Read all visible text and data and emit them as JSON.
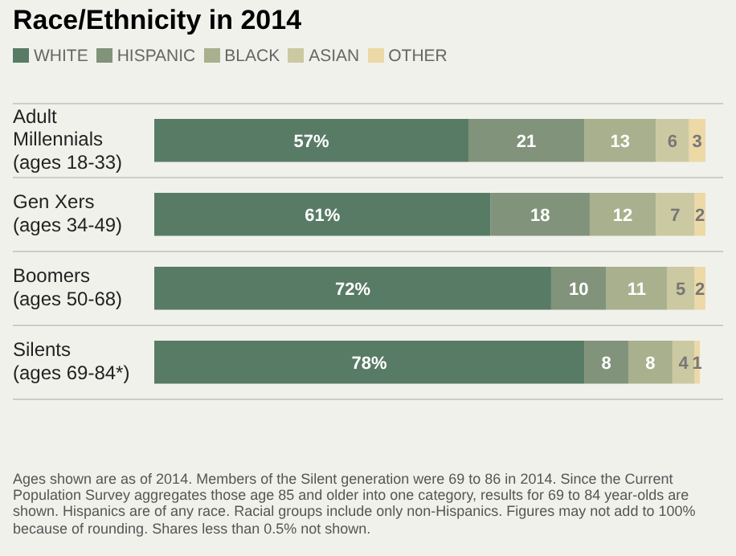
{
  "chart_data": {
    "type": "bar",
    "orientation": "horizontal",
    "stacked": true,
    "title": "Race/Ethnicity in 2014",
    "categories": [
      "Adult\nMillennials\n(ages 18-33)",
      "Gen Xers\n(ages 34-49)",
      "Boomers\n(ages 50-68)",
      "Silents\n(ages 69-84*)"
    ],
    "series": [
      {
        "name": "WHITE",
        "color": "#587b66",
        "values": [
          57,
          61,
          72,
          78
        ],
        "value_labels": [
          "57%",
          "61%",
          "72%",
          "78%"
        ]
      },
      {
        "name": "HISPANIC",
        "color": "#81937a",
        "values": [
          21,
          18,
          10,
          8
        ],
        "value_labels": [
          "21",
          "18",
          "10",
          "8"
        ]
      },
      {
        "name": "BLACK",
        "color": "#a9b08e",
        "values": [
          13,
          12,
          11,
          8
        ],
        "value_labels": [
          "13",
          "12",
          "11",
          "8"
        ]
      },
      {
        "name": "ASIAN",
        "color": "#cbc9a2",
        "values": [
          6,
          7,
          5,
          4
        ],
        "value_labels": [
          "6",
          "7",
          "5",
          "4"
        ]
      },
      {
        "name": "OTHER",
        "color": "#ecd9a6",
        "values": [
          3,
          2,
          2,
          1
        ],
        "value_labels": [
          "3",
          "2",
          "2",
          "1"
        ]
      }
    ],
    "xlim": [
      0,
      100
    ],
    "tick_labels": "y",
    "grid": "y",
    "legend": "top left",
    "annotations": [
      "Ages shown are as of 2014. Members of the Silent generation were 69 to 86 in 2014. Since the Current Population Survey aggregates those age 85 and older into one category, results for 69 to 84 year-olds are shown. Hispanics are of any race. Racial groups include only non-Hispanics. Figures may not add to 100% because of rounding. Shares less than 0.5% not shown."
    ]
  }
}
